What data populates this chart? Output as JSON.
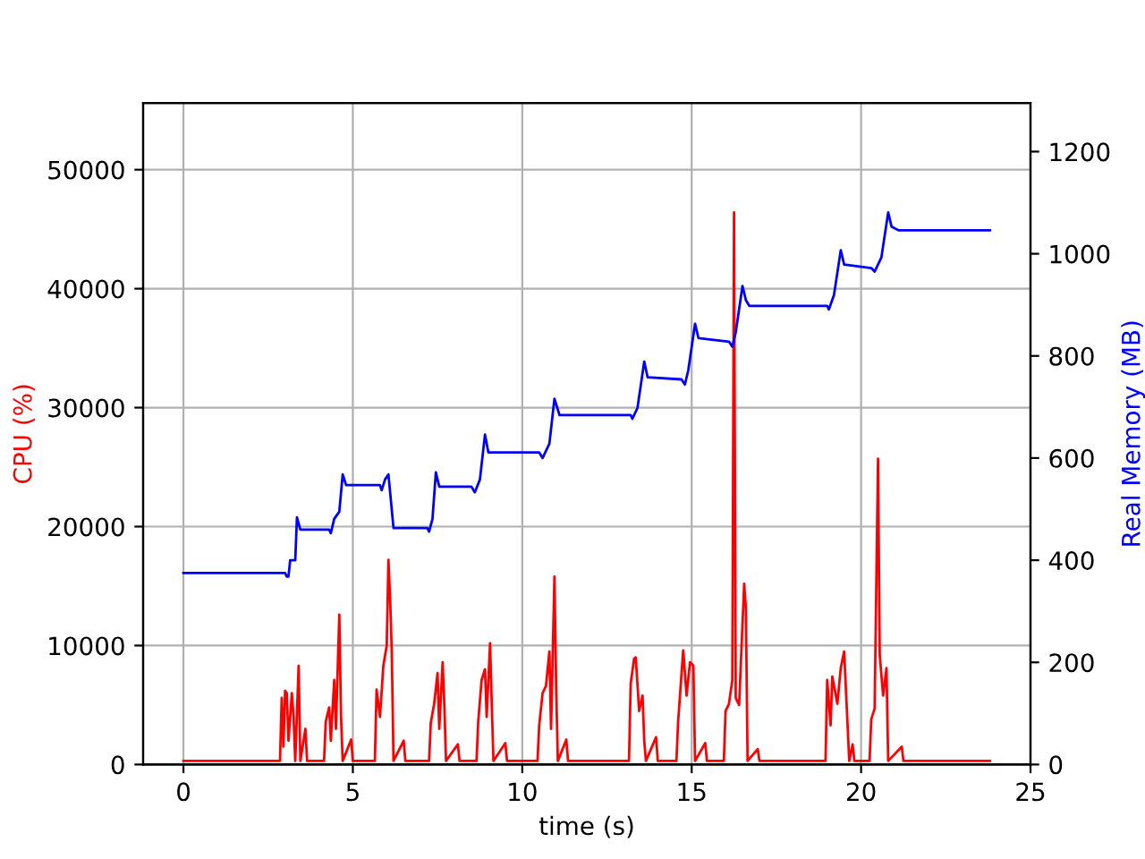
{
  "chart_data": {
    "type": "line",
    "xlabel": "time (s)",
    "ylabel": "CPU (%)",
    "y2label": "Real Memory (MB)",
    "xlim": [
      -1.19,
      25
    ],
    "xticks": [
      0,
      5,
      10,
      15,
      20,
      25
    ],
    "ylim": [
      0,
      55600
    ],
    "yticks": [
      0,
      10000,
      20000,
      30000,
      40000,
      50000
    ],
    "y2lim": [
      0,
      1295
    ],
    "y2ticks": [
      0,
      200,
      400,
      600,
      800,
      1000,
      1200
    ],
    "grid": true,
    "marker": "none",
    "line_style": "solid",
    "series": [
      {
        "color": "#ff0000",
        "axis": "y",
        "x": [
          0,
          2.85,
          2.9,
          2.95,
          3.0,
          3.05,
          3.1,
          3.2,
          3.25,
          3.3,
          3.4,
          3.45,
          3.6,
          3.65,
          4.15,
          4.2,
          4.3,
          4.35,
          4.45,
          4.5,
          4.6,
          4.65,
          4.7,
          4.95,
          5.0,
          5.65,
          5.7,
          5.8,
          5.9,
          6.0,
          6.05,
          6.1,
          6.15,
          6.2,
          6.5,
          6.55,
          7.25,
          7.3,
          7.4,
          7.5,
          7.55,
          7.65,
          7.7,
          7.75,
          8.1,
          8.15,
          8.65,
          8.7,
          8.8,
          8.9,
          8.95,
          9.05,
          9.1,
          9.15,
          9.5,
          9.55,
          10.45,
          10.5,
          10.6,
          10.7,
          10.8,
          10.85,
          10.95,
          11.0,
          11.05,
          11.3,
          11.35,
          13.15,
          13.2,
          13.3,
          13.35,
          13.45,
          13.55,
          13.6,
          13.65,
          13.95,
          14.0,
          14.55,
          14.6,
          14.75,
          14.85,
          14.95,
          15.05,
          15.1,
          15.4,
          15.45,
          15.95,
          16.0,
          16.1,
          16.2,
          16.25,
          16.3,
          16.4,
          16.55,
          16.6,
          16.65,
          16.95,
          17.0,
          18.95,
          19.0,
          19.1,
          19.15,
          19.3,
          19.4,
          19.5,
          19.6,
          19.65,
          19.75,
          19.8,
          20.25,
          20.3,
          20.4,
          20.5,
          20.55,
          20.65,
          20.75,
          20.8,
          21.2,
          21.25,
          23.8
        ],
        "values": [
          300,
          300,
          5600,
          1500,
          6200,
          6000,
          2000,
          6000,
          4000,
          300,
          8300,
          300,
          3000,
          300,
          300,
          3600,
          4800,
          2000,
          7100,
          3000,
          12600,
          4100,
          300,
          2100,
          300,
          300,
          6300,
          4000,
          8300,
          10000,
          17200,
          14000,
          9300,
          300,
          2000,
          300,
          300,
          3500,
          5100,
          7700,
          3000,
          8600,
          5000,
          300,
          1700,
          300,
          300,
          3600,
          7100,
          8000,
          4000,
          10200,
          5000,
          300,
          1800,
          300,
          300,
          3300,
          6000,
          6600,
          9500,
          3000,
          15800,
          6600,
          300,
          2100,
          300,
          300,
          6800,
          8900,
          9000,
          4500,
          5800,
          2000,
          300,
          2300,
          300,
          300,
          3600,
          9600,
          5800,
          8600,
          8300,
          300,
          1800,
          300,
          300,
          4500,
          5100,
          7100,
          46400,
          5600,
          5000,
          15200,
          13100,
          300,
          1300,
          300,
          300,
          7100,
          3300,
          7400,
          5100,
          8100,
          9500,
          3400,
          300,
          1700,
          300,
          300,
          3800,
          4700,
          25700,
          9200,
          5800,
          8100,
          300,
          1500,
          300,
          300
        ]
      },
      {
        "color": "#0000ff",
        "axis": "y2",
        "x": [
          0,
          3.0,
          3.05,
          3.1,
          3.15,
          3.3,
          3.35,
          3.45,
          4.3,
          4.35,
          4.45,
          4.6,
          4.7,
          4.8,
          5.8,
          5.85,
          5.95,
          6.05,
          6.2,
          7.2,
          7.25,
          7.35,
          7.45,
          7.55,
          8.5,
          8.6,
          8.75,
          8.9,
          9.0,
          10.5,
          10.6,
          10.8,
          10.95,
          11.1,
          13.2,
          13.25,
          13.4,
          13.6,
          13.7,
          14.7,
          14.8,
          14.9,
          15.1,
          15.2,
          16.1,
          16.2,
          16.3,
          16.5,
          16.6,
          16.7,
          19.0,
          19.05,
          19.2,
          19.4,
          19.5,
          20.3,
          20.4,
          20.6,
          20.8,
          20.9,
          21.1,
          23.8
        ],
        "values": [
          375,
          375,
          368,
          368,
          400,
          400,
          484,
          460,
          460,
          453,
          481,
          495,
          568,
          547,
          547,
          537,
          558,
          568,
          463,
          463,
          456,
          481,
          572,
          544,
          544,
          533,
          558,
          646,
          611,
          611,
          600,
          628,
          716,
          684,
          684,
          677,
          698,
          789,
          758,
          754,
          744,
          772,
          863,
          835,
          828,
          818,
          846,
          937,
          909,
          898,
          898,
          891,
          919,
          1007,
          979,
          972,
          965,
          993,
          1081,
          1053,
          1046,
          1046
        ]
      }
    ]
  }
}
